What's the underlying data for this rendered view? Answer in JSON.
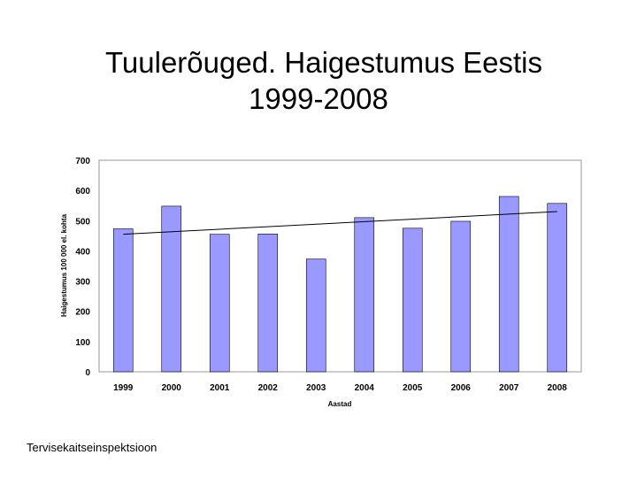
{
  "slide": {
    "title_line1": "Tuulerõuged. Haigestumus Eestis",
    "title_line2": "1999-2008",
    "footer": "Tervisekaitseinspektsioon"
  },
  "colors": {
    "bar": "#9999ff",
    "bar_stroke": "#000000",
    "trend": "#000000",
    "plot_border": "#999999"
  },
  "chart_data": {
    "type": "bar",
    "categories": [
      "1999",
      "2000",
      "2001",
      "2002",
      "2003",
      "2004",
      "2005",
      "2006",
      "2007",
      "2008"
    ],
    "values": [
      473,
      548,
      455,
      456,
      373,
      510,
      475,
      498,
      580,
      557
    ],
    "xlabel": "Aastad",
    "ylabel": "Haigestumus 100 000 el. kohta",
    "ylim": [
      0,
      700
    ],
    "yticks": [
      0,
      100,
      200,
      300,
      400,
      500,
      600,
      700
    ],
    "trendline": {
      "start": 455,
      "end": 530
    },
    "grid": false,
    "legend": "none"
  }
}
